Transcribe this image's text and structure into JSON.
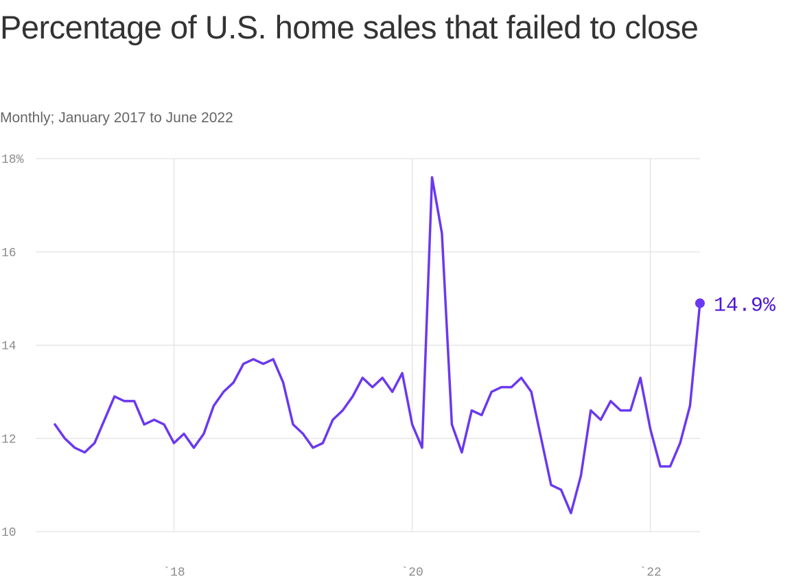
{
  "title": "Percentage of U.S. home sales that failed to close",
  "subtitle": "Monthly; January 2017 to June 2022",
  "colors": {
    "line": "#6b38f0",
    "label": "#4f17d8",
    "grid": "#dcdcdc",
    "tick": "#8c8c8c"
  },
  "chart_data": {
    "type": "line",
    "x_start": "2017-01",
    "x_end": "2022-06",
    "x_tick_labels": [
      "`18",
      "`20",
      "`22"
    ],
    "y_tick_labels": [
      "18%",
      "16",
      "14",
      "12",
      "10"
    ],
    "ylim": [
      10,
      18
    ],
    "grid": true,
    "series": [
      {
        "values": [
          12.3,
          12.0,
          11.8,
          11.7,
          11.9,
          12.4,
          12.9,
          12.8,
          12.8,
          12.3,
          12.4,
          12.3,
          11.9,
          12.1,
          11.8,
          12.1,
          12.7,
          13.0,
          13.2,
          13.6,
          13.7,
          13.6,
          13.7,
          13.2,
          12.3,
          12.1,
          11.8,
          11.9,
          12.4,
          12.6,
          12.9,
          13.3,
          13.1,
          13.3,
          13.0,
          13.4,
          12.3,
          11.8,
          17.6,
          16.4,
          12.3,
          11.7,
          12.6,
          12.5,
          13.0,
          13.1,
          13.1,
          13.3,
          13.0,
          12.0,
          11.0,
          10.9,
          10.4,
          11.2,
          12.6,
          12.4,
          12.8,
          12.6,
          12.6,
          13.3,
          12.2,
          11.4,
          11.4,
          11.9,
          12.7,
          14.9
        ]
      }
    ],
    "end_label": "14.9%"
  }
}
